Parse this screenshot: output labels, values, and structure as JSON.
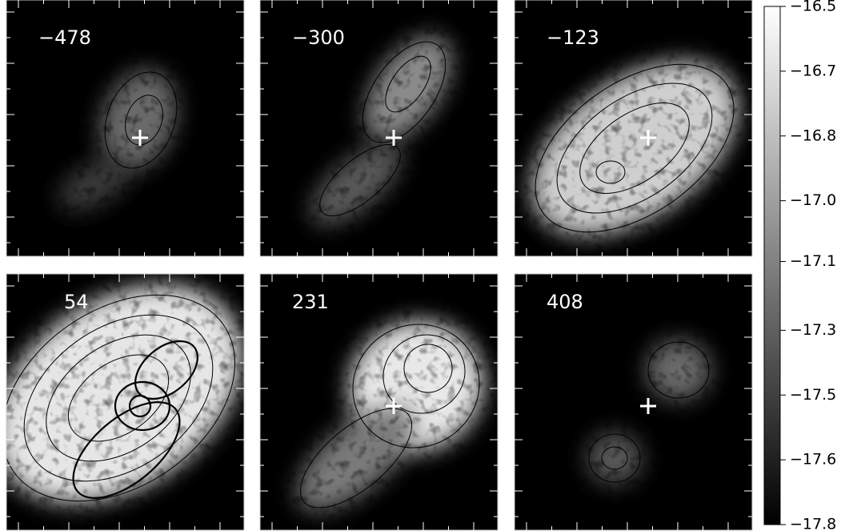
{
  "panels": [
    {
      "label": "−478"
    },
    {
      "label": "−300"
    },
    {
      "label": "−123"
    },
    {
      "label": "54"
    },
    {
      "label": "231"
    },
    {
      "label": "408"
    }
  ],
  "colorbar": {
    "lim": [
      -17.8,
      -16.5
    ],
    "ticks": [
      {
        "value": -16.5,
        "label": "−16.5"
      },
      {
        "value": -16.6625,
        "label": "−16.7"
      },
      {
        "value": -16.825,
        "label": "−16.8"
      },
      {
        "value": -16.9875,
        "label": "−17.0"
      },
      {
        "value": -17.14,
        "label": "−17.1"
      },
      {
        "value": -17.3125,
        "label": "−17.3"
      },
      {
        "value": -17.475,
        "label": "−17.5"
      },
      {
        "value": -17.6375,
        "label": "−17.6"
      },
      {
        "value": -17.8,
        "label": "−17.8"
      }
    ]
  }
}
